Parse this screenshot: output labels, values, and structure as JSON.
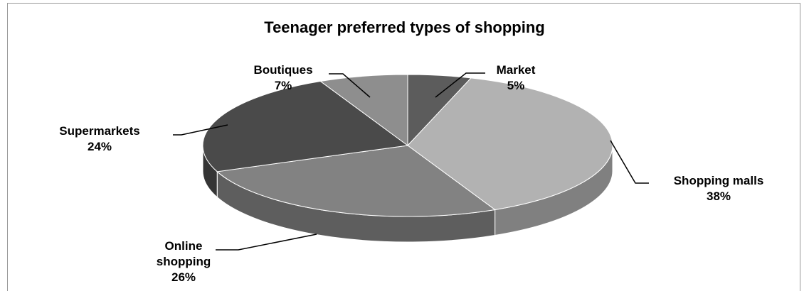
{
  "chart_data": {
    "type": "pie",
    "title": "Teenager preferred types of shopping",
    "categories": [
      "Market",
      "Shopping malls",
      "Online shopping",
      "Supermarkets",
      "Boutiques"
    ],
    "values": [
      5,
      38,
      26,
      24,
      7
    ],
    "value_labels": [
      "5%",
      "38%",
      "26%",
      "24%",
      "7%"
    ],
    "colors": [
      "#5c5c5c",
      "#b2b2b2",
      "#828282",
      "#4a4a4a",
      "#8e8e8e"
    ]
  }
}
